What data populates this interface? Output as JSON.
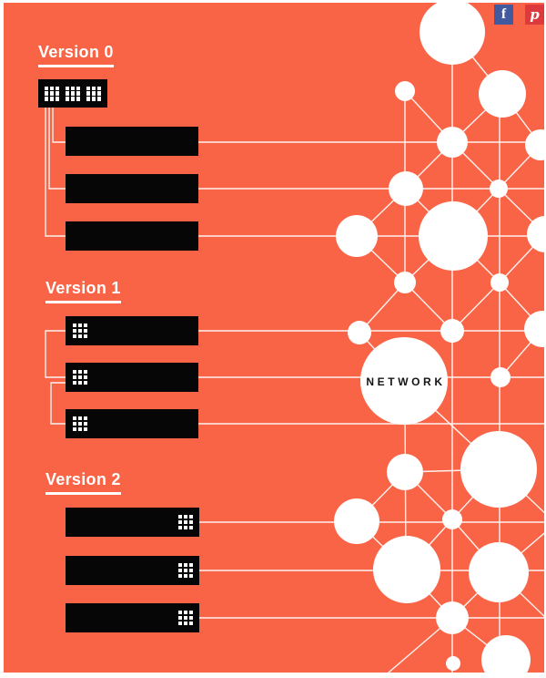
{
  "canvas": {
    "background": "#FA6446",
    "frame_color": "#FFFFFF",
    "bar_color": "#060606"
  },
  "social_bar": {
    "facebook": {
      "label": "f",
      "color": "#41599E"
    },
    "pinterest": {
      "label": "p",
      "color": "#DC3A3C"
    }
  },
  "sections": {
    "version0": {
      "title": "Version 0"
    },
    "version1": {
      "title": "Version 1"
    },
    "version2": {
      "title": "Version 2"
    }
  },
  "network": {
    "label": "NETWORK",
    "line_color": "#FFFFFF",
    "node_color": "#FFFFFF"
  }
}
